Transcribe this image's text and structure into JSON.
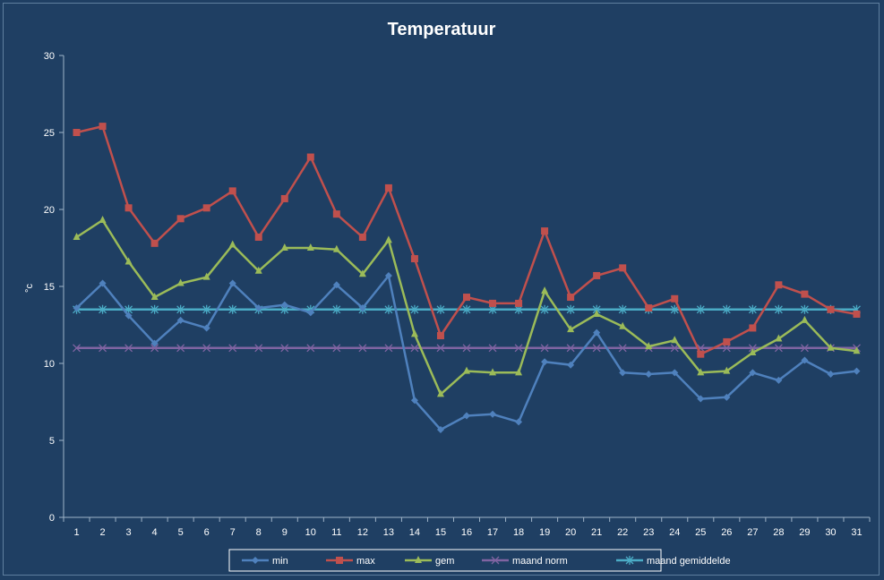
{
  "chart_data": {
    "type": "line",
    "title": "Temperatuur",
    "xlabel": "",
    "ylabel": "°c",
    "ylim": [
      0,
      30
    ],
    "yticks": [
      0,
      5,
      10,
      15,
      20,
      25,
      30
    ],
    "grid": false,
    "legend_position": "bottom",
    "x": [
      1,
      2,
      3,
      4,
      5,
      6,
      7,
      8,
      9,
      10,
      11,
      12,
      13,
      14,
      15,
      16,
      17,
      18,
      19,
      20,
      21,
      22,
      23,
      24,
      25,
      26,
      27,
      28,
      29,
      30,
      31
    ],
    "series": [
      {
        "name": "min",
        "color": "#4f81bd",
        "marker": "diamond",
        "values": [
          13.6,
          15.2,
          13.1,
          11.3,
          12.8,
          12.3,
          15.2,
          13.6,
          13.8,
          13.3,
          15.1,
          13.6,
          15.7,
          7.6,
          5.7,
          6.6,
          6.7,
          6.2,
          10.1,
          9.9,
          12.0,
          9.4,
          9.3,
          9.4,
          7.7,
          7.8,
          9.4,
          8.9,
          10.2,
          9.3,
          9.5
        ]
      },
      {
        "name": "max",
        "color": "#c0504d",
        "marker": "square",
        "values": [
          25.0,
          25.4,
          20.1,
          17.8,
          19.4,
          20.1,
          21.2,
          18.2,
          20.7,
          23.4,
          19.7,
          18.2,
          21.4,
          16.8,
          11.8,
          14.3,
          13.9,
          13.9,
          18.6,
          14.3,
          15.7,
          16.2,
          13.6,
          14.2,
          10.6,
          11.4,
          12.3,
          15.1,
          14.5,
          13.5,
          13.2
        ]
      },
      {
        "name": "gem",
        "color": "#9bbb59",
        "marker": "triangle",
        "values": [
          18.2,
          19.3,
          16.6,
          14.3,
          15.2,
          15.6,
          17.7,
          16.0,
          17.5,
          17.5,
          17.4,
          15.8,
          18.0,
          11.9,
          8.0,
          9.5,
          9.4,
          9.4,
          14.7,
          12.2,
          13.2,
          12.4,
          11.1,
          11.5,
          9.4,
          9.5,
          10.7,
          11.6,
          12.8,
          11.0,
          10.8
        ]
      },
      {
        "name": "maand norm",
        "color": "#8064a2",
        "marker": "x",
        "values": [
          11.0,
          11.0,
          11.0,
          11.0,
          11.0,
          11.0,
          11.0,
          11.0,
          11.0,
          11.0,
          11.0,
          11.0,
          11.0,
          11.0,
          11.0,
          11.0,
          11.0,
          11.0,
          11.0,
          11.0,
          11.0,
          11.0,
          11.0,
          11.0,
          11.0,
          11.0,
          11.0,
          11.0,
          11.0,
          11.0,
          11.0
        ]
      },
      {
        "name": "maand gemiddelde",
        "color": "#4bacc6",
        "marker": "star",
        "values": [
          13.5,
          13.5,
          13.5,
          13.5,
          13.5,
          13.5,
          13.5,
          13.5,
          13.5,
          13.5,
          13.5,
          13.5,
          13.5,
          13.5,
          13.5,
          13.5,
          13.5,
          13.5,
          13.5,
          13.5,
          13.5,
          13.5,
          13.5,
          13.5,
          13.5,
          13.5,
          13.5,
          13.5,
          13.5,
          13.5,
          13.5
        ]
      }
    ]
  }
}
